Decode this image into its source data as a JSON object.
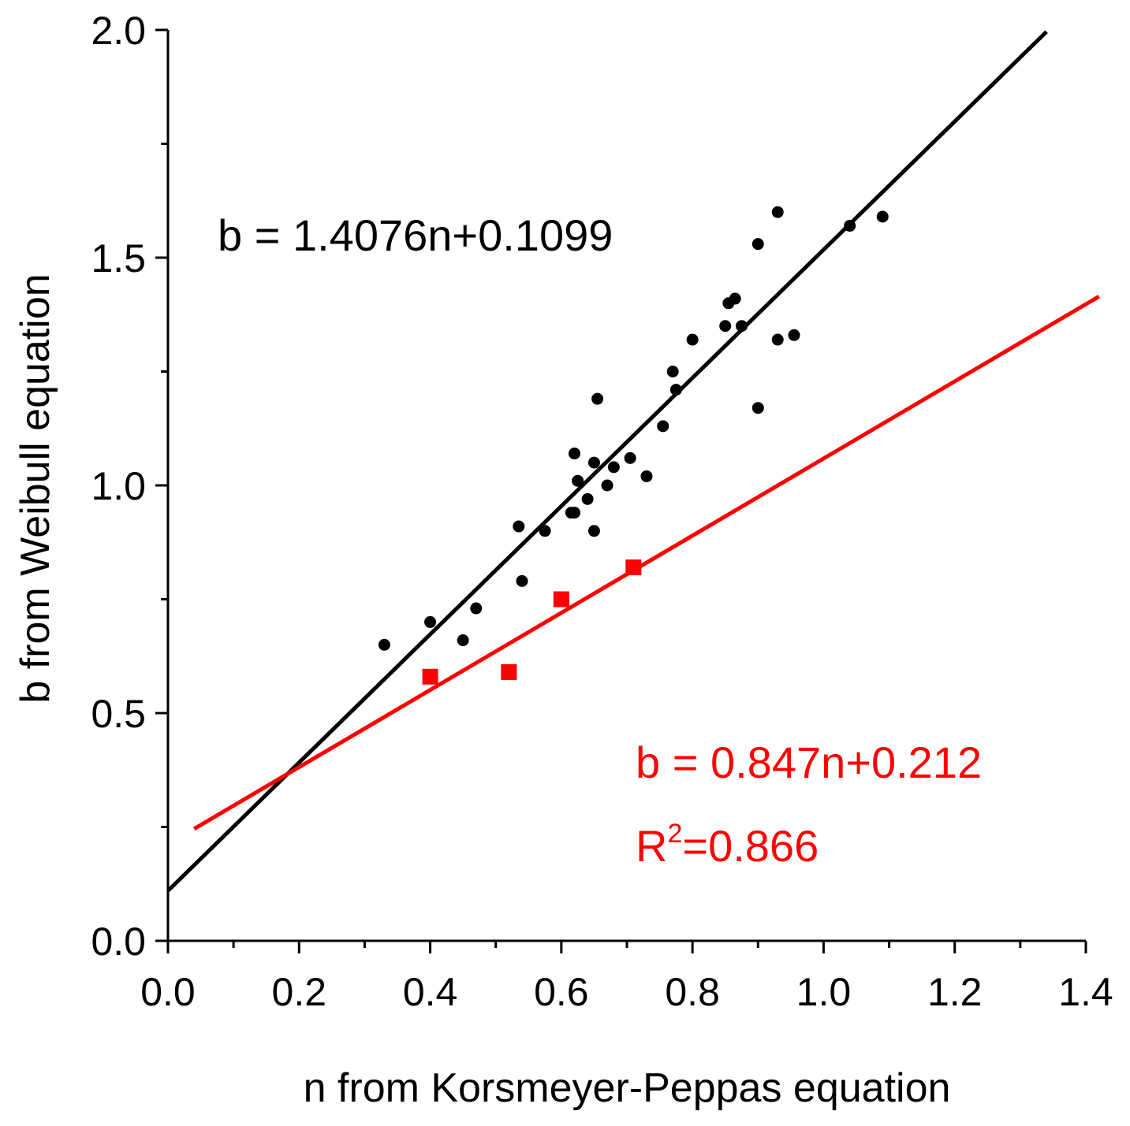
{
  "chart_data": {
    "type": "scatter",
    "title": "",
    "xlabel": "n from Korsmeyer-Peppas equation",
    "ylabel": "b from Weibull equation",
    "xlim": [
      0.0,
      1.4
    ],
    "ylim": [
      0.0,
      2.0
    ],
    "x_ticks": [
      "0.0",
      "0.2",
      "0.4",
      "0.6",
      "0.8",
      "1.0",
      "1.2",
      "1.4"
    ],
    "y_ticks": [
      "0.0",
      "0.5",
      "1.0",
      "1.5",
      "2.0"
    ],
    "x_minor_step": 0.1,
    "y_minor_step": 0.25,
    "grid": false,
    "series": [
      {
        "name": "black points",
        "color": "#000000",
        "marker": "circle",
        "points": [
          [
            0.33,
            0.65
          ],
          [
            0.4,
            0.7
          ],
          [
            0.45,
            0.66
          ],
          [
            0.47,
            0.73
          ],
          [
            0.535,
            0.91
          ],
          [
            0.54,
            0.79
          ],
          [
            0.575,
            0.9
          ],
          [
            0.615,
            0.94
          ],
          [
            0.62,
            0.94
          ],
          [
            0.62,
            1.07
          ],
          [
            0.625,
            1.01
          ],
          [
            0.64,
            0.97
          ],
          [
            0.65,
            1.05
          ],
          [
            0.65,
            0.9
          ],
          [
            0.655,
            1.19
          ],
          [
            0.67,
            1.0
          ],
          [
            0.68,
            1.04
          ],
          [
            0.705,
            1.06
          ],
          [
            0.73,
            1.02
          ],
          [
            0.755,
            1.13
          ],
          [
            0.77,
            1.25
          ],
          [
            0.775,
            1.21
          ],
          [
            0.8,
            1.32
          ],
          [
            0.85,
            1.35
          ],
          [
            0.855,
            1.4
          ],
          [
            0.865,
            1.41
          ],
          [
            0.875,
            1.35
          ],
          [
            0.9,
            1.53
          ],
          [
            0.9,
            1.17
          ],
          [
            0.93,
            1.6
          ],
          [
            0.93,
            1.32
          ],
          [
            0.955,
            1.33
          ],
          [
            1.04,
            1.57
          ],
          [
            1.09,
            1.59
          ]
        ]
      },
      {
        "name": "red points",
        "color": "#ff0000",
        "marker": "square",
        "points": [
          [
            0.4,
            0.58
          ],
          [
            0.52,
            0.59
          ],
          [
            0.6,
            0.75
          ],
          [
            0.71,
            0.82
          ]
        ]
      }
    ],
    "fit_lines": [
      {
        "name": "black fit",
        "color": "#000000",
        "slope": 1.4076,
        "intercept": 0.1099,
        "x_range": [
          0.0,
          1.34
        ]
      },
      {
        "name": "red fit",
        "color": "#ff0000",
        "slope": 0.847,
        "intercept": 0.212,
        "x_range": [
          0.04,
          1.42
        ]
      }
    ],
    "annotations": {
      "black_equation": "b = 1.4076n+0.1099",
      "red_equation": "b = 0.847n+0.212",
      "red_r2_prefix": "R",
      "red_r2_superscript": "2",
      "red_r2_value": "=0.866"
    }
  }
}
